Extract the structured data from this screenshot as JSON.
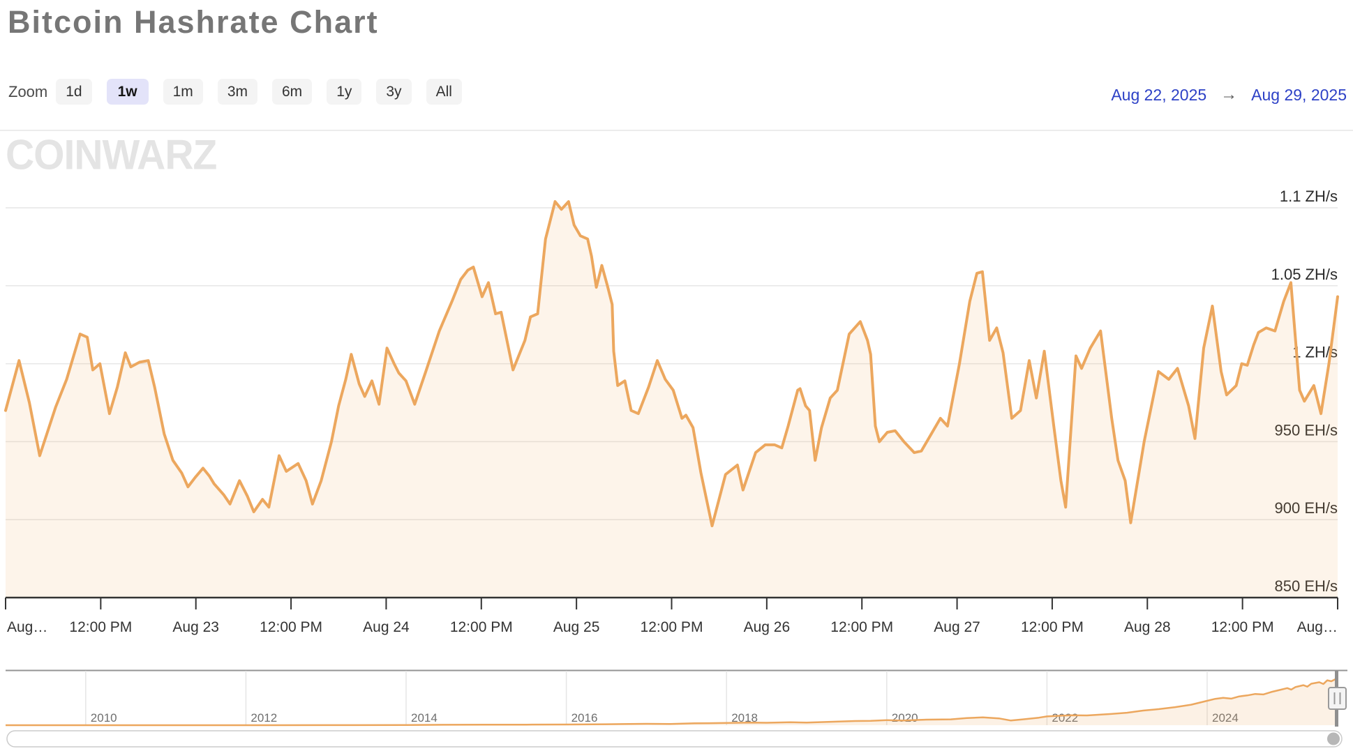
{
  "page": {
    "title": "Bitcoin Hashrate Chart"
  },
  "toolbar": {
    "zoom_label": "Zoom",
    "buttons": [
      {
        "label": "1d",
        "selected": false
      },
      {
        "label": "1w",
        "selected": true
      },
      {
        "label": "1m",
        "selected": false
      },
      {
        "label": "3m",
        "selected": false
      },
      {
        "label": "6m",
        "selected": false
      },
      {
        "label": "1y",
        "selected": false
      },
      {
        "label": "3y",
        "selected": false
      },
      {
        "label": "All",
        "selected": false
      }
    ],
    "range": {
      "from": "Aug 22, 2025",
      "arrow": "→",
      "to": "Aug 29, 2025"
    }
  },
  "watermark": {
    "text": "COINWARZ"
  },
  "colors": {
    "line": "#eca75e",
    "area_fill": "rgba(236,167,94,0.13)",
    "nav_area_fill": "rgba(236,167,94,0.16)",
    "grid": "#e6e6e6",
    "axis": "#333333",
    "x_label": "#333333",
    "y_label": "#2b2b2b",
    "nav_outline": "#949494",
    "nav_grid": "#e5e5e5",
    "nav_label": "#6f6f6f",
    "handle_fill": "#f4f4f4",
    "handle_stroke": "#9a9a9a",
    "scrollbar_track_stroke": "#cbcbcb",
    "scrollbar_track_fill": "#ffffff",
    "scrollbar_thumb": "#b7b7b7",
    "accent_blue": "#2d41c6",
    "selected_btn_bg": "#e3e3f9"
  },
  "chart_data": [
    {
      "name": "main",
      "type": "area",
      "x_unit": "hours since Aug 22, 2025 00:00",
      "x_range": [
        0,
        168
      ],
      "y_unit": "EH/s",
      "y_range": [
        850,
        1125
      ],
      "grid": "horizontal",
      "y_ticks": [
        {
          "value": 1100,
          "label": "1.1 ZH/s"
        },
        {
          "value": 1050,
          "label": "1.05 ZH/s"
        },
        {
          "value": 1000,
          "label": "1 ZH/s"
        },
        {
          "value": 950,
          "label": "950 EH/s"
        },
        {
          "value": 900,
          "label": "900 EH/s"
        },
        {
          "value": 850,
          "label": "850 EH/s"
        }
      ],
      "x_ticks": [
        {
          "h": 0,
          "label": "Aug…"
        },
        {
          "h": 12,
          "label": "12:00 PM"
        },
        {
          "h": 24,
          "label": "Aug 23"
        },
        {
          "h": 36,
          "label": "12:00 PM"
        },
        {
          "h": 48,
          "label": "Aug 24"
        },
        {
          "h": 60,
          "label": "12:00 PM"
        },
        {
          "h": 72,
          "label": "Aug 25"
        },
        {
          "h": 84,
          "label": "12:00 PM"
        },
        {
          "h": 96,
          "label": "Aug 26"
        },
        {
          "h": 108,
          "label": "12:00 PM"
        },
        {
          "h": 120,
          "label": "Aug 27"
        },
        {
          "h": 132,
          "label": "12:00 PM"
        },
        {
          "h": 144,
          "label": "Aug 28"
        },
        {
          "h": 156,
          "label": "12:00 PM"
        },
        {
          "h": 168,
          "label": "Aug…"
        }
      ],
      "points": [
        [
          0,
          970
        ],
        [
          1.7,
          1002
        ],
        [
          3,
          975
        ],
        [
          4.3,
          941
        ],
        [
          6.3,
          972
        ],
        [
          7.7,
          990
        ],
        [
          9.4,
          1019
        ],
        [
          10.3,
          1017
        ],
        [
          11,
          996
        ],
        [
          11.9,
          1000
        ],
        [
          13.1,
          968
        ],
        [
          14.1,
          985
        ],
        [
          15.1,
          1007
        ],
        [
          15.8,
          998
        ],
        [
          16.9,
          1001
        ],
        [
          18,
          1002
        ],
        [
          18.8,
          985
        ],
        [
          20,
          955
        ],
        [
          21.1,
          938
        ],
        [
          22.2,
          930
        ],
        [
          23,
          921
        ],
        [
          23.9,
          927
        ],
        [
          24.9,
          933
        ],
        [
          25.7,
          928
        ],
        [
          26.3,
          923
        ],
        [
          27.5,
          916
        ],
        [
          28.3,
          910
        ],
        [
          29.5,
          925
        ],
        [
          30.5,
          915
        ],
        [
          31.3,
          905
        ],
        [
          32.4,
          913
        ],
        [
          33.2,
          908
        ],
        [
          34.5,
          941
        ],
        [
          35.4,
          931
        ],
        [
          36.3,
          934
        ],
        [
          36.9,
          936
        ],
        [
          37.9,
          925
        ],
        [
          38.7,
          910
        ],
        [
          39.8,
          925
        ],
        [
          41.1,
          950
        ],
        [
          42,
          973
        ],
        [
          42.9,
          990
        ],
        [
          43.6,
          1006
        ],
        [
          44.6,
          987
        ],
        [
          45.3,
          979
        ],
        [
          46.2,
          989
        ],
        [
          47.1,
          974
        ],
        [
          48.1,
          1010
        ],
        [
          49,
          1000
        ],
        [
          49.6,
          994
        ],
        [
          50.5,
          989
        ],
        [
          51.6,
          974
        ],
        [
          53,
          995
        ],
        [
          54.7,
          1021
        ],
        [
          56.3,
          1040
        ],
        [
          57.4,
          1054
        ],
        [
          58.3,
          1060
        ],
        [
          59,
          1062
        ],
        [
          60.1,
          1043
        ],
        [
          60.9,
          1052
        ],
        [
          61.8,
          1032
        ],
        [
          62.5,
          1033
        ],
        [
          64,
          996
        ],
        [
          65.5,
          1015
        ],
        [
          66.2,
          1030
        ],
        [
          67.1,
          1032
        ],
        [
          68.1,
          1080
        ],
        [
          69.3,
          1104
        ],
        [
          70.1,
          1099
        ],
        [
          71,
          1104
        ],
        [
          71.7,
          1089
        ],
        [
          72.5,
          1082
        ],
        [
          73.4,
          1080
        ],
        [
          73.9,
          1069
        ],
        [
          74.5,
          1049
        ],
        [
          75.2,
          1063
        ],
        [
          75.9,
          1050
        ],
        [
          76.5,
          1038
        ],
        [
          76.7,
          1008
        ],
        [
          77.2,
          986
        ],
        [
          78.1,
          989
        ],
        [
          78.9,
          970
        ],
        [
          79.8,
          968
        ],
        [
          81.1,
          985
        ],
        [
          82.2,
          1002
        ],
        [
          83.2,
          990
        ],
        [
          84.2,
          983
        ],
        [
          85.3,
          965
        ],
        [
          85.8,
          967
        ],
        [
          86.7,
          959
        ],
        [
          87.7,
          930
        ],
        [
          89.1,
          896
        ],
        [
          90.8,
          929
        ],
        [
          92.3,
          935
        ],
        [
          93,
          919
        ],
        [
          94.6,
          943
        ],
        [
          95.8,
          948
        ],
        [
          97,
          948
        ],
        [
          97.9,
          946
        ],
        [
          98.7,
          960
        ],
        [
          99.9,
          983
        ],
        [
          100.2,
          984
        ],
        [
          100.9,
          973
        ],
        [
          101.4,
          970
        ],
        [
          102.1,
          938
        ],
        [
          102.9,
          959
        ],
        [
          104,
          978
        ],
        [
          104.9,
          983
        ],
        [
          106.4,
          1019
        ],
        [
          107.8,
          1027
        ],
        [
          108.7,
          1015
        ],
        [
          109.1,
          1006
        ],
        [
          109.7,
          960
        ],
        [
          110.2,
          950
        ],
        [
          111.2,
          956
        ],
        [
          112.2,
          957
        ],
        [
          113.3,
          950
        ],
        [
          114.6,
          943
        ],
        [
          115.5,
          944
        ],
        [
          117.9,
          965
        ],
        [
          118.8,
          960
        ],
        [
          120.3,
          1000
        ],
        [
          121.6,
          1040
        ],
        [
          122.5,
          1058
        ],
        [
          123.2,
          1059
        ],
        [
          124.1,
          1015
        ],
        [
          125,
          1023
        ],
        [
          125.8,
          1007
        ],
        [
          126.9,
          965
        ],
        [
          128,
          970
        ],
        [
          129.1,
          1002
        ],
        [
          130,
          978
        ],
        [
          131,
          1008
        ],
        [
          132.2,
          960
        ],
        [
          133.1,
          925
        ],
        [
          133.7,
          908
        ],
        [
          135,
          1005
        ],
        [
          135.7,
          997
        ],
        [
          136.8,
          1010
        ],
        [
          138.1,
          1021
        ],
        [
          139.5,
          965
        ],
        [
          140.3,
          938
        ],
        [
          141.2,
          925
        ],
        [
          141.9,
          898
        ],
        [
          143.6,
          950
        ],
        [
          145.4,
          995
        ],
        [
          146.7,
          990
        ],
        [
          147.8,
          997
        ],
        [
          149.2,
          973
        ],
        [
          150,
          952
        ],
        [
          151.1,
          1010
        ],
        [
          152.2,
          1037
        ],
        [
          153.3,
          995
        ],
        [
          154,
          980
        ],
        [
          155.2,
          986
        ],
        [
          155.9,
          1000
        ],
        [
          156.6,
          999
        ],
        [
          157.4,
          1012
        ],
        [
          158,
          1020
        ],
        [
          159,
          1023
        ],
        [
          160.1,
          1021
        ],
        [
          161.2,
          1040
        ],
        [
          162.1,
          1052
        ],
        [
          163.2,
          983
        ],
        [
          163.8,
          976
        ],
        [
          165,
          986
        ],
        [
          165.9,
          968
        ],
        [
          166.9,
          1000
        ],
        [
          168,
          1043
        ]
      ]
    },
    {
      "name": "navigator",
      "type": "area",
      "x_unit": "year",
      "x_range": [
        2009.0,
        2025.61
      ],
      "y_unit": "EH/s",
      "y_range": [
        0,
        1000
      ],
      "x_ticks": [
        {
          "year": 2010,
          "label": "2010"
        },
        {
          "year": 2012,
          "label": "2012"
        },
        {
          "year": 2014,
          "label": "2014"
        },
        {
          "year": 2016,
          "label": "2016"
        },
        {
          "year": 2018,
          "label": "2018"
        },
        {
          "year": 2020,
          "label": "2020"
        },
        {
          "year": 2022,
          "label": "2022"
        },
        {
          "year": 2024,
          "label": "2024"
        }
      ],
      "points": [
        [
          2009,
          0
        ],
        [
          2010,
          0
        ],
        [
          2011,
          0
        ],
        [
          2012,
          0.1
        ],
        [
          2013,
          1
        ],
        [
          2014,
          5
        ],
        [
          2014.5,
          8
        ],
        [
          2015,
          10
        ],
        [
          2015.5,
          12
        ],
        [
          2016,
          15
        ],
        [
          2016.5,
          20
        ],
        [
          2017,
          28
        ],
        [
          2017.3,
          25
        ],
        [
          2017.6,
          38
        ],
        [
          2018,
          45
        ],
        [
          2018.3,
          55
        ],
        [
          2018.5,
          50
        ],
        [
          2018.8,
          60
        ],
        [
          2019,
          55
        ],
        [
          2019.3,
          70
        ],
        [
          2019.6,
          85
        ],
        [
          2019.8,
          90
        ],
        [
          2020,
          105
        ],
        [
          2020.2,
          95
        ],
        [
          2020.5,
          115
        ],
        [
          2020.8,
          120
        ],
        [
          2021,
          145
        ],
        [
          2021.2,
          160
        ],
        [
          2021.4,
          140
        ],
        [
          2021.55,
          95
        ],
        [
          2021.7,
          120
        ],
        [
          2021.9,
          155
        ],
        [
          2022,
          180
        ],
        [
          2022.3,
          205
        ],
        [
          2022.5,
          200
        ],
        [
          2022.8,
          230
        ],
        [
          2023,
          255
        ],
        [
          2023.2,
          300
        ],
        [
          2023.4,
          330
        ],
        [
          2023.6,
          370
        ],
        [
          2023.8,
          420
        ],
        [
          2024,
          500
        ],
        [
          2024.1,
          540
        ],
        [
          2024.2,
          560
        ],
        [
          2024.3,
          545
        ],
        [
          2024.4,
          590
        ],
        [
          2024.5,
          610
        ],
        [
          2024.6,
          640
        ],
        [
          2024.7,
          630
        ],
        [
          2024.8,
          680
        ],
        [
          2024.9,
          720
        ],
        [
          2025,
          760
        ],
        [
          2025.05,
          730
        ],
        [
          2025.1,
          780
        ],
        [
          2025.2,
          820
        ],
        [
          2025.25,
          790
        ],
        [
          2025.3,
          850
        ],
        [
          2025.4,
          880
        ],
        [
          2025.45,
          845
        ],
        [
          2025.5,
          920
        ],
        [
          2025.55,
          900
        ],
        [
          2025.61,
          950
        ]
      ]
    }
  ]
}
